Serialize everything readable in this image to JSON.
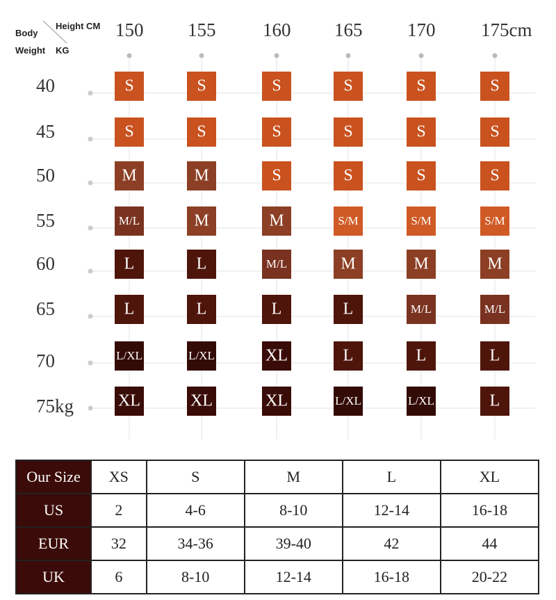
{
  "header": {
    "body": "Body",
    "height": "Height CM",
    "weight": "Weight",
    "kg": "KG"
  },
  "heights": [
    "150",
    "155",
    "160",
    "165",
    "170",
    "175cm"
  ],
  "weights": [
    "40",
    "45",
    "50",
    "55",
    "60",
    "65",
    "70",
    "75kg"
  ],
  "grid": [
    [
      "S",
      "S",
      "S",
      "S",
      "S",
      "S"
    ],
    [
      "S",
      "S",
      "S",
      "S",
      "S",
      "S"
    ],
    [
      "M",
      "M",
      "S",
      "S",
      "S",
      "S"
    ],
    [
      "M/L",
      "M",
      "M",
      "S/M",
      "S/M",
      "S/M"
    ],
    [
      "L",
      "L",
      "M/L",
      "M",
      "M",
      "M"
    ],
    [
      "L",
      "L",
      "L",
      "L",
      "M/L",
      "M/L"
    ],
    [
      "L/XL",
      "L/XL",
      "XL",
      "L",
      "L",
      "L"
    ],
    [
      "XL",
      "XL",
      "XL",
      "L/XL",
      "L/XL",
      "L"
    ]
  ],
  "table": {
    "rows": [
      [
        "Our Size",
        "XS",
        "S",
        "M",
        "L",
        "XL"
      ],
      [
        "US",
        "2",
        "4-6",
        "8-10",
        "12-14",
        "16-18"
      ],
      [
        "EUR",
        "32",
        "34-36",
        "39-40",
        "42",
        "44"
      ],
      [
        "UK",
        "6",
        "8-10",
        "12-14",
        "16-18",
        "20-22"
      ]
    ]
  }
}
